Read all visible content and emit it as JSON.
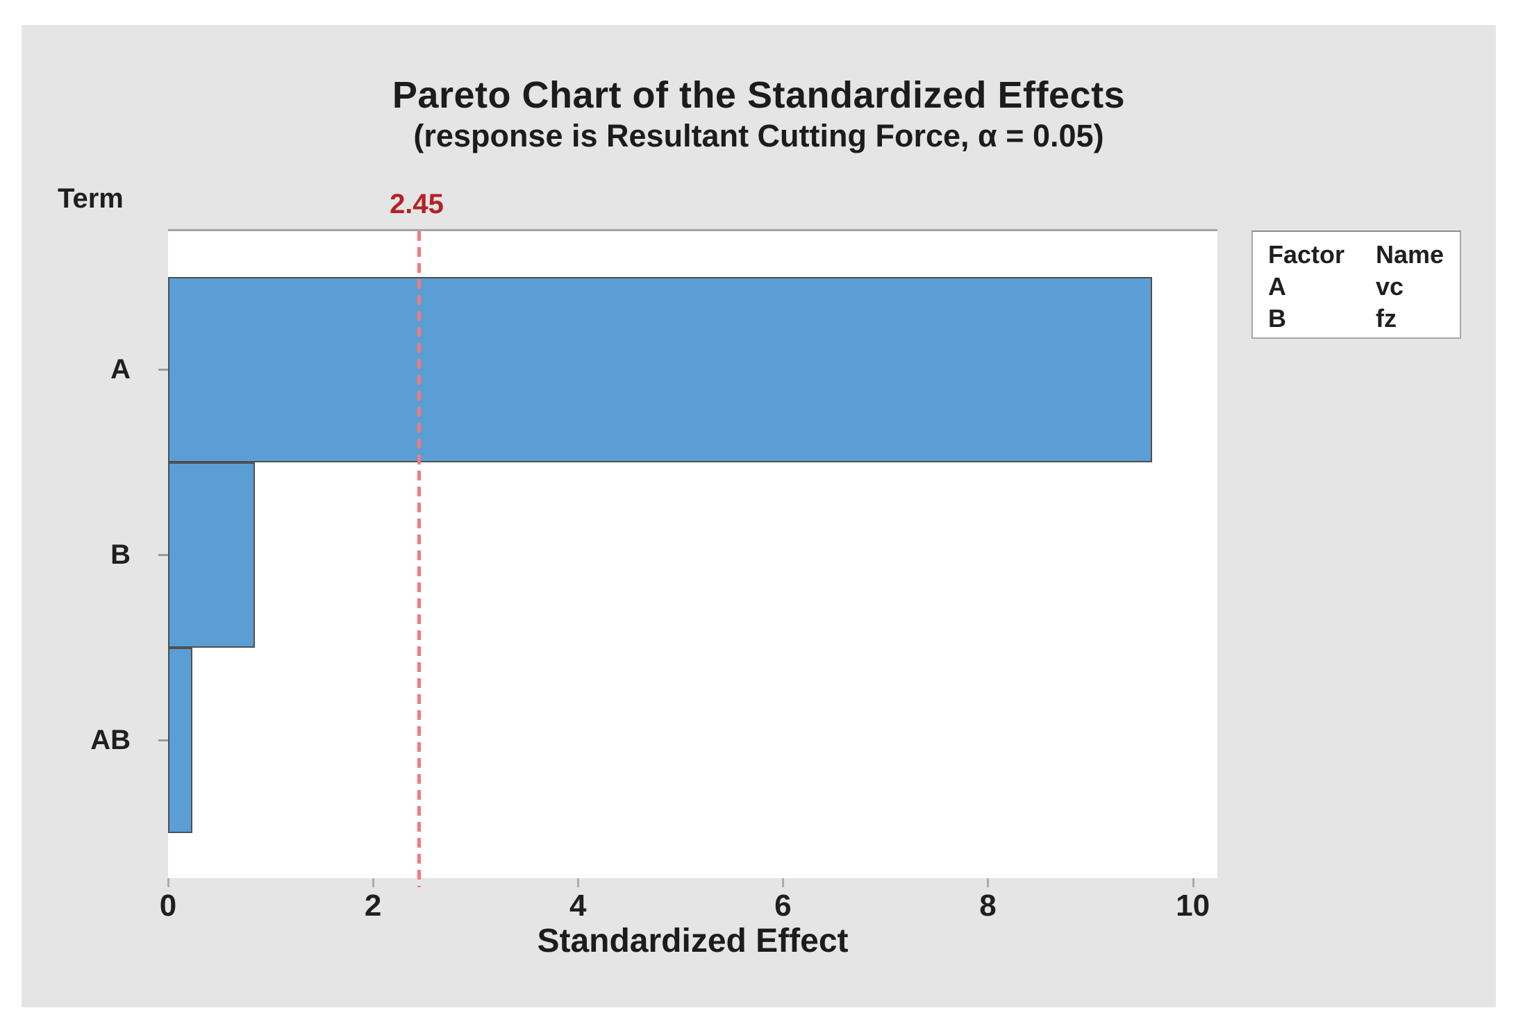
{
  "chart": {
    "y_axis_title": "Term"
  },
  "legend": {
    "headers": {
      "factor": "Factor",
      "name": "Name"
    },
    "rows": [
      {
        "factor": "A",
        "name": "vc"
      },
      {
        "factor": "B",
        "name": "fz"
      }
    ]
  },
  "chart_data": {
    "type": "bar",
    "orientation": "horizontal",
    "title": "Pareto Chart of the Standardized Effects",
    "subtitle": "(response is Resultant Cutting Force, α = 0.05)",
    "xlabel": "Standardized Effect",
    "ylabel": "Term",
    "categories": [
      "A",
      "B",
      "AB"
    ],
    "values": [
      9.6,
      0.85,
      0.24
    ],
    "xlim": [
      0,
      10.24
    ],
    "xticks": [
      0,
      2,
      4,
      6,
      8,
      10
    ],
    "grid": false,
    "reference_line": {
      "value": 2.45,
      "label": "2.45"
    },
    "legend_position": "right",
    "colors": {
      "bar_fill": "#5b9ed5",
      "bar_border": "#4f4f4f",
      "reference_line": "#f4797c",
      "reference_label": "#b42225",
      "panel_background": "#e5e5e5",
      "plot_background": "#ffffff"
    }
  }
}
